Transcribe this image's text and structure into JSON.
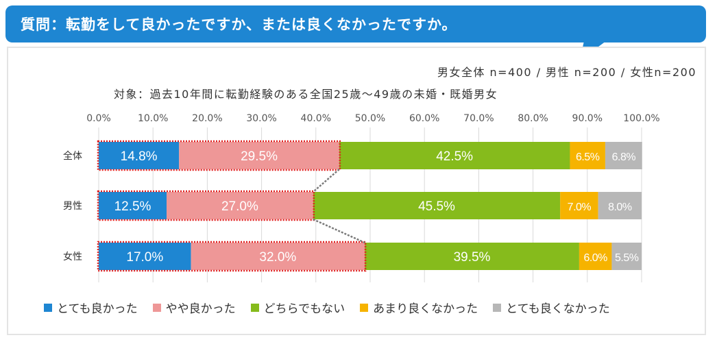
{
  "header": {
    "question": "質問：転勤をして良かったですか、または良くなかったですか。"
  },
  "sample_note": "男女全体 n=400 / 男性 n=200 / 女性n=200",
  "subject_note": "対象：過去10年間に転勤経験のある全国25歳〜49歳の未婚・既婚男女",
  "colors": {
    "banner": "#1e86d2",
    "highlight_border": "#e02020"
  },
  "chart_data": {
    "type": "bar",
    "orientation": "horizontal",
    "stacked": true,
    "percent_axis": true,
    "xlim": [
      0,
      100
    ],
    "x_ticks": [
      "0.0%",
      "10.0%",
      "20.0%",
      "30.0%",
      "40.0%",
      "50.0%",
      "60.0%",
      "70.0%",
      "80.0%",
      "90.0%",
      "100.0%"
    ],
    "x_tick_position": "top",
    "grid": true,
    "legend_position": "bottom",
    "categories": [
      "全体",
      "男性",
      "女性"
    ],
    "series": [
      {
        "name": "とても良かった",
        "color": "#1e86d2",
        "values": [
          14.8,
          12.5,
          17.0
        ]
      },
      {
        "name": "やや良かった",
        "color": "#ee9797",
        "values": [
          29.5,
          27.0,
          32.0
        ]
      },
      {
        "name": "どちらでもない",
        "color": "#86bb1c",
        "values": [
          42.5,
          45.5,
          39.5
        ]
      },
      {
        "name": "あまり良くなかった",
        "color": "#f6b300",
        "values": [
          6.5,
          7.0,
          6.0
        ]
      },
      {
        "name": "とても良くなかった",
        "color": "#b7b7b7",
        "values": [
          6.8,
          8.0,
          5.5
        ]
      }
    ],
    "highlighted_series": [
      "とても良かった",
      "やや良かった"
    ]
  }
}
